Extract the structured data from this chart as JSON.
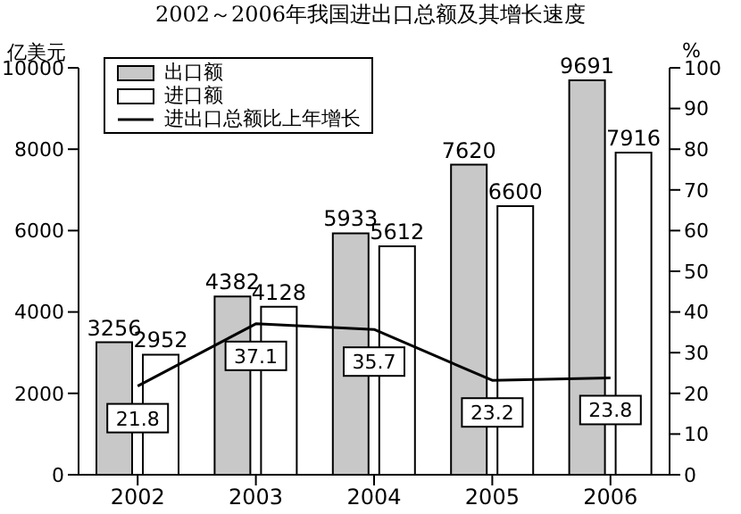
{
  "chart_data": {
    "type": "bar",
    "title": "2002～2006年我国进出口总额及其增长速度",
    "ylabel": "亿美元",
    "y2label": "%",
    "categories": [
      "2002",
      "2003",
      "2004",
      "2005",
      "2006"
    ],
    "series": [
      {
        "name": "出口额",
        "color": "#c8c8c8",
        "values": [
          3256,
          4382,
          5933,
          7620,
          9691
        ]
      },
      {
        "name": "进口额",
        "color": "#ffffff",
        "values": [
          2952,
          4128,
          5612,
          6600,
          7916
        ]
      },
      {
        "name": "进出口总额比上年增长",
        "type": "line",
        "axis": "y2",
        "color": "#000000",
        "values": [
          21.8,
          37.1,
          35.7,
          23.2,
          23.8
        ]
      }
    ],
    "ylim": [
      0,
      10000
    ],
    "yticks": [
      0,
      2000,
      4000,
      6000,
      8000,
      10000
    ],
    "y2lim": [
      0,
      100
    ],
    "y2ticks": [
      0,
      10,
      20,
      30,
      40,
      50,
      60,
      70,
      80,
      90,
      100
    ],
    "data_labels": true,
    "grid": false,
    "legend": "top left",
    "marker": "none"
  }
}
